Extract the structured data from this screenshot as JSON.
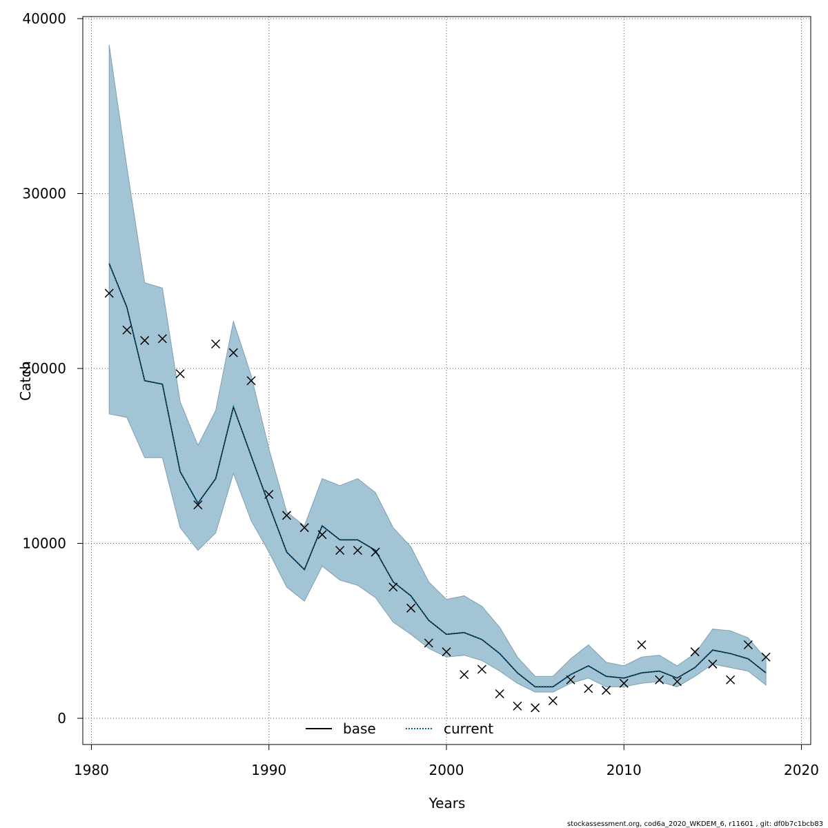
{
  "chart_data": {
    "type": "line",
    "title": "",
    "xlabel": "Years",
    "ylabel": "Catch",
    "xlim": [
      1980,
      2020
    ],
    "ylim": [
      0,
      40000
    ],
    "x_ticks": [
      "1980",
      "1990",
      "2000",
      "2010",
      "2020"
    ],
    "y_ticks": [
      "0",
      "10000",
      "20000",
      "30000",
      "40000"
    ],
    "grid": true,
    "legend_position": "bottom-center",
    "years": [
      1981,
      1982,
      1983,
      1984,
      1985,
      1986,
      1987,
      1988,
      1989,
      1990,
      1991,
      1992,
      1993,
      1994,
      1995,
      1996,
      1997,
      1998,
      1999,
      2000,
      2001,
      2002,
      2003,
      2004,
      2005,
      2006,
      2007,
      2008,
      2009,
      2010,
      2011,
      2012,
      2013,
      2014,
      2015,
      2016,
      2017,
      2018
    ],
    "band_upper": [
      38500,
      31500,
      24900,
      24600,
      18100,
      15600,
      17600,
      22700,
      19600,
      15400,
      11800,
      11000,
      13700,
      13300,
      13700,
      12900,
      10900,
      9800,
      7800,
      6800,
      7000,
      6400,
      5200,
      3500,
      2400,
      2400,
      3400,
      4200,
      3200,
      3000,
      3500,
      3600,
      3000,
      3700,
      5100,
      5000,
      4600,
      3400
    ],
    "band_lower": [
      17400,
      17200,
      14900,
      14900,
      10900,
      9600,
      10600,
      14000,
      11300,
      9500,
      7500,
      6700,
      8700,
      7900,
      7600,
      6900,
      5500,
      4800,
      4000,
      3500,
      3600,
      3300,
      2700,
      2000,
      1500,
      1500,
      2000,
      2300,
      1800,
      1800,
      2000,
      2100,
      1800,
      2400,
      3100,
      2900,
      2700,
      1900
    ],
    "series": [
      {
        "name": "base",
        "color": "#000000",
        "style": "solid",
        "values": [
          26000,
          23500,
          19300,
          19100,
          14100,
          12300,
          13700,
          17800,
          15000,
          12200,
          9500,
          8500,
          11000,
          10200,
          10200,
          9600,
          7800,
          7000,
          5600,
          4800,
          4900,
          4500,
          3700,
          2600,
          1800,
          1800,
          2500,
          3000,
          2400,
          2300,
          2600,
          2700,
          2300,
          2900,
          3900,
          3700,
          3400,
          2600
        ]
      },
      {
        "name": "current",
        "color": "#005f8c",
        "style": "dotted",
        "values": [
          26000,
          23500,
          19300,
          19100,
          14100,
          12300,
          13700,
          17800,
          15000,
          12200,
          9500,
          8500,
          11000,
          10200,
          10200,
          9600,
          7800,
          7000,
          5600,
          4800,
          4900,
          4500,
          3700,
          2600,
          1800,
          1800,
          2500,
          3000,
          2400,
          2300,
          2600,
          2700,
          2300,
          2900,
          3900,
          3700,
          3400,
          2600
        ]
      }
    ],
    "observations": {
      "marker": "x",
      "values": [
        24300,
        22200,
        21600,
        21700,
        19700,
        12200,
        21400,
        20900,
        19300,
        12800,
        11600,
        10900,
        10500,
        9600,
        9600,
        9500,
        7500,
        6300,
        4300,
        3800,
        2500,
        2800,
        1400,
        700,
        600,
        1000,
        2200,
        1700,
        1600,
        2000,
        4200,
        2200,
        2100,
        3800,
        3100,
        2200,
        4200,
        3500
      ]
    },
    "band_color": "#a3c4d5",
    "band_edge_color": "#7f9eb0"
  },
  "footer": {
    "credit": "stockassessment.org, cod6a_2020_WKDEM_6, r11601 , git: df0b7c1bcb83"
  }
}
